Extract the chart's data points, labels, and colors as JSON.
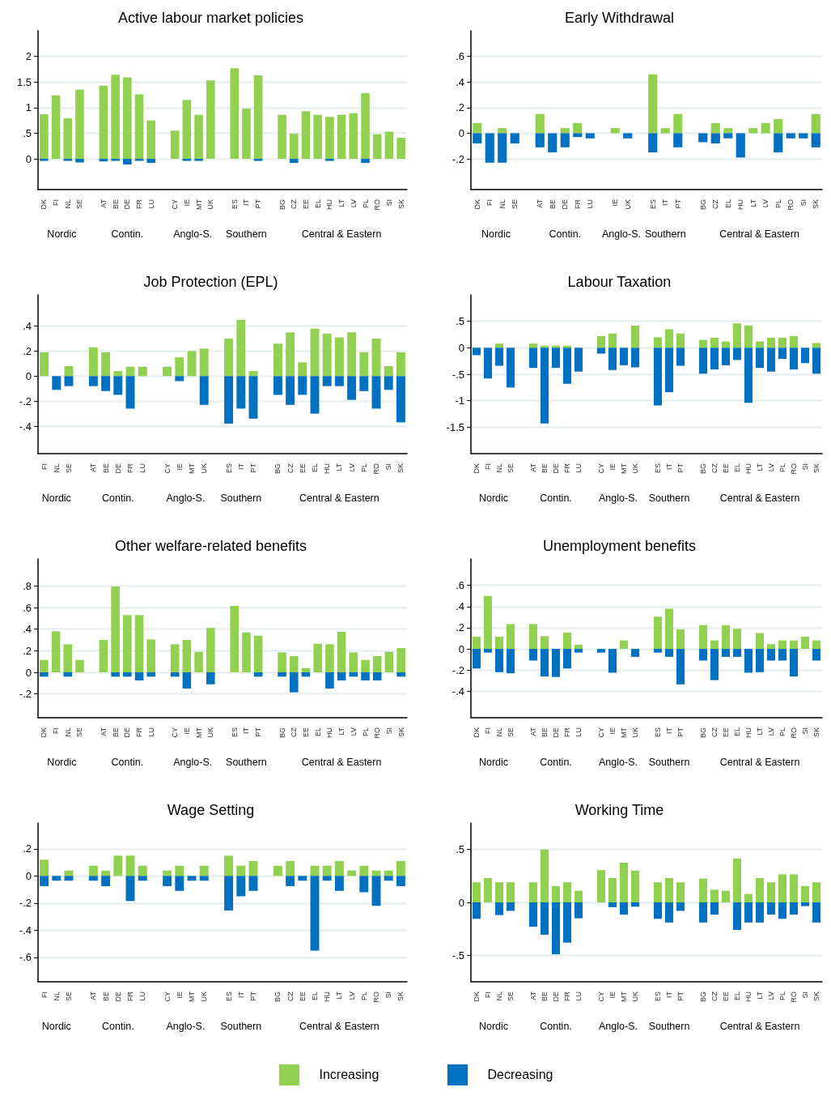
{
  "chart_data": [
    {
      "type": "bar",
      "title": "Active labour market policies",
      "stacked": true,
      "grid": "y",
      "ylim": [
        -0.6,
        2.5
      ],
      "yticks": [
        0,
        {
          "value": 0.5,
          "label": ".5"
        },
        1,
        1.5,
        2
      ],
      "categories": [
        "DK",
        "FI",
        "NL",
        "SE",
        null,
        "AT",
        "BE",
        "DE",
        "FR",
        "LU",
        null,
        "CY",
        "IE",
        "MT",
        "UK",
        null,
        "ES",
        "IT",
        "PT",
        null,
        "BG",
        "CZ",
        "EE",
        "EL",
        "HU",
        "LT",
        "LV",
        "PL",
        "RO",
        "SI",
        "SK"
      ],
      "annotations": [
        "Nordic",
        "Contin.",
        "Anglo-S.",
        "Southern",
        "Central & Eastern"
      ],
      "legend": "bottom",
      "series": [
        {
          "name": "Increasing",
          "color": "#92d050",
          "values": [
            0.87,
            1.24,
            0.79,
            1.35,
            null,
            1.43,
            1.64,
            1.59,
            1.26,
            0.75,
            null,
            0.55,
            1.15,
            0.86,
            1.53,
            null,
            1.77,
            0.98,
            1.63,
            null,
            0.86,
            0.49,
            0.93,
            0.86,
            0.82,
            0.86,
            0.89,
            1.28,
            0.48,
            0.53,
            0.41
          ]
        },
        {
          "name": "Decreasing",
          "color": "#0070c0",
          "values": [
            -0.04,
            null,
            -0.04,
            -0.07,
            null,
            -0.05,
            -0.04,
            -0.11,
            -0.04,
            -0.08,
            null,
            null,
            -0.04,
            -0.04,
            null,
            null,
            null,
            null,
            -0.04,
            null,
            null,
            -0.08,
            null,
            null,
            -0.04,
            null,
            null,
            -0.08,
            null,
            null,
            null
          ]
        }
      ]
    },
    {
      "type": "bar",
      "title": "Early Withdrawal",
      "stacked": true,
      "grid": "y",
      "ylim": [
        -0.44,
        0.8
      ],
      "yticks": [
        {
          "value": -0.2,
          "label": "-.2"
        },
        0,
        {
          "value": 0.2,
          "label": ".2"
        },
        {
          "value": 0.4,
          "label": ".4"
        },
        {
          "value": 0.6,
          "label": ".6"
        }
      ],
      "categories": [
        "DK",
        "FI",
        "NL",
        "SE",
        null,
        "AT",
        "BE",
        "DE",
        "FR",
        "LU",
        null,
        "IE",
        "UK",
        null,
        "ES",
        "IT",
        "PT",
        null,
        "BG",
        "CZ",
        "EL",
        "HU",
        "LT",
        "LV",
        "PL",
        "RO",
        "SI",
        "SK"
      ],
      "annotations": [
        "Nordic",
        "Contin.",
        "Anglo-S.",
        "Southern",
        "Central & Eastern"
      ],
      "series": [
        {
          "color": "#92d050",
          "values": [
            0.08,
            null,
            0.04,
            null,
            null,
            0.15,
            null,
            0.04,
            0.08,
            null,
            null,
            0.04,
            null,
            null,
            0.46,
            0.04,
            0.15,
            null,
            null,
            0.08,
            0.04,
            null,
            0.04,
            0.08,
            0.11,
            null,
            null,
            0.15
          ]
        },
        {
          "color": "#0070c0",
          "values": [
            -0.08,
            -0.23,
            -0.23,
            -0.08,
            null,
            -0.11,
            -0.15,
            -0.11,
            -0.03,
            -0.04,
            null,
            null,
            -0.04,
            null,
            -0.15,
            null,
            -0.11,
            null,
            -0.07,
            -0.08,
            -0.04,
            -0.19,
            null,
            null,
            -0.15,
            -0.04,
            -0.04,
            -0.11
          ]
        }
      ]
    },
    {
      "type": "bar",
      "title": "Job Protection (EPL)",
      "stacked": true,
      "grid": "y",
      "ylim": [
        -0.62,
        0.65
      ],
      "yticks": [
        {
          "value": -0.4,
          "label": "-.4"
        },
        {
          "value": -0.2,
          "label": "-.2"
        },
        0,
        {
          "value": 0.2,
          "label": ".2"
        },
        {
          "value": 0.4,
          "label": ".4"
        }
      ],
      "categories": [
        "FI",
        "NL",
        "SE",
        null,
        "AT",
        "BE",
        "DE",
        "FR",
        "LU",
        null,
        "CY",
        "IE",
        "MT",
        "UK",
        null,
        "ES",
        "IT",
        "PT",
        null,
        "BG",
        "CZ",
        "EE",
        "EL",
        "HU",
        "LT",
        "LV",
        "PL",
        "RO",
        "SI",
        "SK"
      ],
      "annotations": [
        "Nordic",
        "Contin.",
        "Anglo-S.",
        "Southern",
        "Central & Eastern"
      ],
      "series": [
        {
          "color": "#92d050",
          "values": [
            0.19,
            null,
            0.08,
            null,
            0.23,
            0.19,
            0.04,
            0.075,
            0.075,
            null,
            0.075,
            0.15,
            0.2,
            0.22,
            null,
            0.3,
            0.45,
            0.04,
            null,
            0.26,
            0.35,
            0.11,
            0.38,
            0.34,
            0.31,
            0.35,
            0.19,
            0.3,
            0.08,
            0.19
          ]
        },
        {
          "color": "#0070c0",
          "values": [
            null,
            -0.11,
            -0.08,
            null,
            -0.08,
            -0.12,
            -0.15,
            -0.26,
            null,
            null,
            null,
            -0.04,
            null,
            -0.23,
            null,
            -0.38,
            -0.26,
            -0.34,
            null,
            -0.15,
            -0.23,
            -0.15,
            -0.3,
            -0.08,
            -0.08,
            -0.19,
            -0.12,
            -0.26,
            -0.11,
            -0.37
          ]
        }
      ]
    },
    {
      "type": "bar",
      "title": "Labour Taxation",
      "stacked": true,
      "grid": "y",
      "ylim": [
        -2,
        1
      ],
      "yticks": [
        -1.5,
        -1,
        {
          "value": -0.5,
          "label": "-.5"
        },
        0,
        {
          "value": 0.5,
          "label": ".5"
        }
      ],
      "categories": [
        "DK",
        "FI",
        "NL",
        "SE",
        null,
        "AT",
        "BE",
        "DE",
        "FR",
        "LU",
        null,
        "CY",
        "IE",
        "MT",
        "UK",
        null,
        "ES",
        "IT",
        "PT",
        null,
        "BG",
        "CZ",
        "EE",
        "EL",
        "HU",
        "LT",
        "LV",
        "PL",
        "RO",
        "SI",
        "SK"
      ],
      "annotations": [
        "Nordic",
        "Contin.",
        "Anglo-S.",
        "Southern",
        "Central & Eastern"
      ],
      "series": [
        {
          "color": "#92d050",
          "values": [
            null,
            null,
            0.08,
            null,
            null,
            0.08,
            0.04,
            0.04,
            0.04,
            null,
            null,
            0.22,
            0.27,
            null,
            0.42,
            null,
            0.2,
            0.35,
            0.27,
            null,
            0.15,
            0.19,
            0.12,
            0.46,
            0.42,
            0.12,
            0.19,
            0.19,
            0.22,
            null,
            0.09
          ]
        },
        {
          "color": "#0070c0",
          "values": [
            -0.14,
            -0.58,
            -0.34,
            -0.75,
            null,
            -0.38,
            -1.43,
            -0.38,
            -0.68,
            -0.45,
            null,
            -0.11,
            -0.42,
            -0.33,
            -0.37,
            null,
            -1.09,
            -0.84,
            -0.34,
            null,
            -0.49,
            -0.41,
            -0.33,
            -0.23,
            -1.04,
            -0.38,
            -0.45,
            -0.21,
            -0.41,
            -0.29,
            -0.49
          ]
        }
      ]
    },
    {
      "type": "bar",
      "title": "Other welfare-related benefits",
      "stacked": true,
      "grid": "y",
      "ylim": [
        -0.42,
        1.05
      ],
      "yticks": [
        {
          "value": -0.2,
          "label": "-.2"
        },
        0,
        {
          "value": 0.2,
          "label": ".2"
        },
        {
          "value": 0.4,
          "label": ".4"
        },
        {
          "value": 0.6,
          "label": ".6"
        },
        {
          "value": 0.8,
          "label": ".8"
        }
      ],
      "categories": [
        "DK",
        "FI",
        "NL",
        "SE",
        null,
        "AT",
        "BE",
        "DE",
        "FR",
        "LU",
        null,
        "CY",
        "IE",
        "MT",
        "UK",
        null,
        "ES",
        "IT",
        "PT",
        null,
        "BG",
        "CZ",
        "EE",
        "EL",
        "HU",
        "LT",
        "LV",
        "PL",
        "RO",
        "SI",
        "SK"
      ],
      "annotations": [
        "Nordic",
        "Contin.",
        "Anglo-S.",
        "Southern",
        "Central & Eastern"
      ],
      "series": [
        {
          "color": "#92d050",
          "values": [
            0.115,
            0.38,
            0.26,
            0.115,
            null,
            0.3,
            0.795,
            0.53,
            0.53,
            0.305,
            null,
            0.26,
            0.3,
            0.19,
            0.41,
            null,
            0.615,
            0.37,
            0.34,
            null,
            0.185,
            0.15,
            0.04,
            0.265,
            0.26,
            0.375,
            0.185,
            0.115,
            0.15,
            0.19,
            0.225
          ]
        },
        {
          "color": "#0070c0",
          "values": [
            -0.04,
            null,
            -0.04,
            null,
            null,
            null,
            -0.04,
            -0.04,
            -0.075,
            -0.04,
            null,
            -0.04,
            -0.15,
            null,
            -0.11,
            null,
            null,
            null,
            -0.04,
            null,
            -0.04,
            -0.185,
            -0.04,
            null,
            -0.15,
            -0.075,
            -0.04,
            -0.075,
            -0.075,
            null,
            -0.04
          ]
        }
      ]
    },
    {
      "type": "bar",
      "title": "Unemployment benefits",
      "stacked": true,
      "grid": "y",
      "ylim": [
        -0.65,
        0.85
      ],
      "yticks": [
        {
          "value": -0.4,
          "label": "-.4"
        },
        {
          "value": -0.2,
          "label": "-.2"
        },
        0,
        {
          "value": 0.2,
          "label": ".2"
        },
        {
          "value": 0.4,
          "label": ".4"
        },
        {
          "value": 0.6,
          "label": ".6"
        }
      ],
      "categories": [
        "DK",
        "FI",
        "NL",
        "SE",
        null,
        "AT",
        "BE",
        "DE",
        "FR",
        "LU",
        null,
        "CY",
        "IE",
        "MT",
        "UK",
        null,
        "ES",
        "IT",
        "PT",
        null,
        "BG",
        "CZ",
        "EE",
        "EL",
        "HU",
        "LT",
        "LV",
        "PL",
        "RO",
        "SI",
        "SK"
      ],
      "annotations": [
        "Nordic",
        "Contin.",
        "Anglo-S.",
        "Southern",
        "Central & Eastern"
      ],
      "series": [
        {
          "color": "#92d050",
          "values": [
            0.115,
            0.5,
            0.115,
            0.235,
            null,
            0.235,
            0.12,
            null,
            0.155,
            0.04,
            null,
            null,
            null,
            0.08,
            null,
            null,
            0.305,
            0.38,
            0.185,
            null,
            0.225,
            0.08,
            0.225,
            0.19,
            null,
            0.15,
            0.045,
            0.08,
            0.08,
            0.115,
            0.08
          ]
        },
        {
          "color": "#0070c0",
          "values": [
            -0.185,
            -0.035,
            -0.22,
            -0.23,
            null,
            -0.11,
            -0.26,
            -0.265,
            -0.185,
            -0.035,
            null,
            -0.035,
            -0.225,
            null,
            -0.075,
            null,
            -0.035,
            -0.075,
            -0.335,
            null,
            -0.11,
            -0.295,
            -0.075,
            -0.075,
            -0.225,
            -0.22,
            -0.11,
            -0.11,
            -0.26,
            null,
            -0.11
          ]
        }
      ]
    },
    {
      "type": "bar",
      "title": "Wage Setting",
      "stacked": true,
      "grid": "y",
      "ylim": [
        -0.78,
        0.39
      ],
      "yticks": [
        {
          "value": -0.6,
          "label": "-.6"
        },
        {
          "value": -0.4,
          "label": "-.4"
        },
        {
          "value": -0.2,
          "label": "-.2"
        },
        0,
        {
          "value": 0.2,
          "label": ".2"
        }
      ],
      "categories": [
        "FI",
        "NL",
        "SE",
        null,
        "AT",
        "BE",
        "DE",
        "FR",
        "LU",
        null,
        "CY",
        "IE",
        "MT",
        "UK",
        null,
        "ES",
        "IT",
        "PT",
        null,
        "BG",
        "CZ",
        "EE",
        "EL",
        "HU",
        "LT",
        "LV",
        "PL",
        "RO",
        "SI",
        "SK"
      ],
      "annotations": [
        "Nordic",
        "Contin.",
        "Anglo-S.",
        "Southern",
        "Central & Eastern"
      ],
      "series": [
        {
          "color": "#92d050",
          "values": [
            0.12,
            null,
            0.04,
            null,
            0.075,
            0.04,
            0.15,
            0.15,
            0.075,
            null,
            0.04,
            0.075,
            null,
            0.075,
            null,
            0.15,
            0.075,
            0.11,
            null,
            0.075,
            0.11,
            null,
            0.075,
            0.075,
            0.11,
            0.04,
            0.075,
            0.04,
            0.04,
            0.11
          ]
        },
        {
          "color": "#0070c0",
          "values": [
            -0.075,
            -0.035,
            -0.035,
            null,
            -0.035,
            -0.075,
            null,
            -0.185,
            -0.035,
            null,
            -0.075,
            -0.11,
            -0.035,
            -0.035,
            null,
            -0.255,
            -0.15,
            -0.11,
            null,
            null,
            -0.075,
            -0.035,
            -0.55,
            -0.035,
            -0.11,
            null,
            -0.12,
            -0.22,
            -0.035,
            -0.075
          ]
        }
      ]
    },
    {
      "type": "bar",
      "title": "Working Time",
      "stacked": true,
      "grid": "y",
      "ylim": [
        -0.75,
        0.75
      ],
      "yticks": [
        {
          "value": -0.5,
          "label": "-.5"
        },
        0,
        {
          "value": 0.5,
          "label": ".5"
        }
      ],
      "categories": [
        "DK",
        "FI",
        "NL",
        "SE",
        null,
        "AT",
        "BE",
        "DE",
        "FR",
        "LU",
        null,
        "CY",
        "IE",
        "MT",
        "UK",
        null,
        "ES",
        "IT",
        "PT",
        null,
        "BG",
        "CZ",
        "EE",
        "EL",
        "HU",
        "LT",
        "LV",
        "PL",
        "RO",
        "SI",
        "SK"
      ],
      "annotations": [
        "Nordic",
        "Contin.",
        "Anglo-S.",
        "Southern",
        "Central & Eastern"
      ],
      "series": [
        {
          "color": "#92d050",
          "values": [
            0.19,
            0.23,
            0.19,
            0.19,
            null,
            0.19,
            0.5,
            0.155,
            0.19,
            0.11,
            null,
            0.305,
            0.23,
            0.375,
            0.3,
            null,
            0.19,
            0.23,
            0.19,
            null,
            0.225,
            0.12,
            0.11,
            0.415,
            0.08,
            0.23,
            0.19,
            0.265,
            0.265,
            0.155,
            0.19
          ]
        },
        {
          "color": "#0070c0",
          "values": [
            -0.155,
            null,
            -0.12,
            -0.08,
            null,
            -0.23,
            -0.305,
            -0.49,
            -0.38,
            -0.15,
            null,
            null,
            -0.045,
            -0.115,
            -0.04,
            null,
            -0.155,
            -0.19,
            -0.08,
            null,
            -0.19,
            -0.115,
            null,
            -0.26,
            -0.19,
            -0.19,
            -0.115,
            -0.155,
            -0.115,
            -0.035,
            -0.19
          ]
        }
      ]
    }
  ]
}
